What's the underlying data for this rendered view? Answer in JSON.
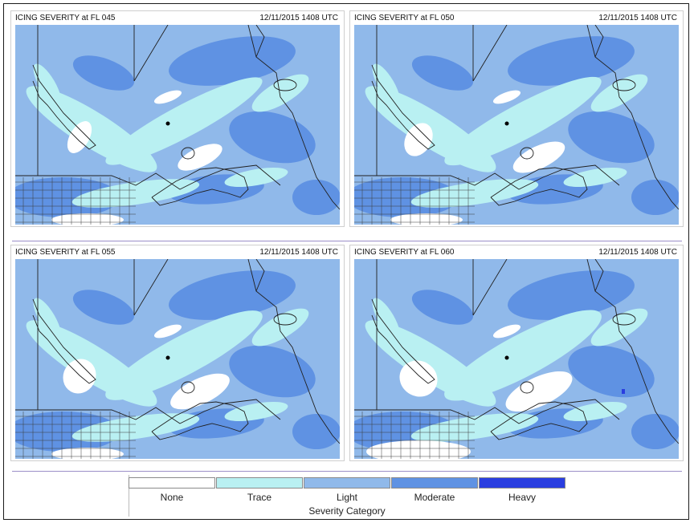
{
  "colors": {
    "none": "#ffffff",
    "trace": "#b9f0f2",
    "light": "#90b9ea",
    "moderate": "#5f92e3",
    "heavy": "#2a3ee0",
    "boundary": "#202020"
  },
  "panels": [
    {
      "title": "ICING SEVERITY at FL 045",
      "time": "12/11/2015 1408 UTC"
    },
    {
      "title": "ICING SEVERITY at FL 050",
      "time": "12/11/2015 1408 UTC"
    },
    {
      "title": "ICING SEVERITY at FL 055",
      "time": "12/11/2015 1408 UTC"
    },
    {
      "title": "ICING SEVERITY at FL 060",
      "time": "12/11/2015 1408 UTC"
    }
  ],
  "legend": {
    "title": "Severity Category",
    "categories": [
      "None",
      "Trace",
      "Light",
      "Moderate",
      "Heavy"
    ]
  }
}
